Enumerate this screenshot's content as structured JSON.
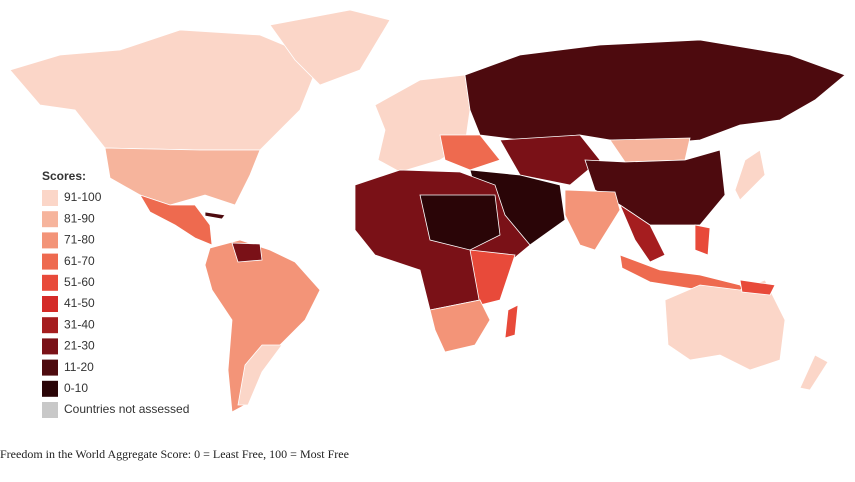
{
  "legend": {
    "title": "Scores:",
    "items": [
      {
        "label": "91-100",
        "color": "#fbd6c8"
      },
      {
        "label": "81-90",
        "color": "#f6b49c"
      },
      {
        "label": "71-80",
        "color": "#f39478"
      },
      {
        "label": "61-70",
        "color": "#ee6a4f"
      },
      {
        "label": "51-60",
        "color": "#e84a3a"
      },
      {
        "label": "41-50",
        "color": "#d42a27"
      },
      {
        "label": "31-40",
        "color": "#a51d1f"
      },
      {
        "label": "21-30",
        "color": "#7a1117"
      },
      {
        "label": "11-20",
        "color": "#4d0a0e"
      },
      {
        "label": "0-10",
        "color": "#2a0507"
      },
      {
        "label": "Countries not assessed",
        "color": "#c8c8c8"
      }
    ]
  },
  "caption": "Freedom in the World Aggregate Score: 0 = Least Free, 100 = Most Free"
}
